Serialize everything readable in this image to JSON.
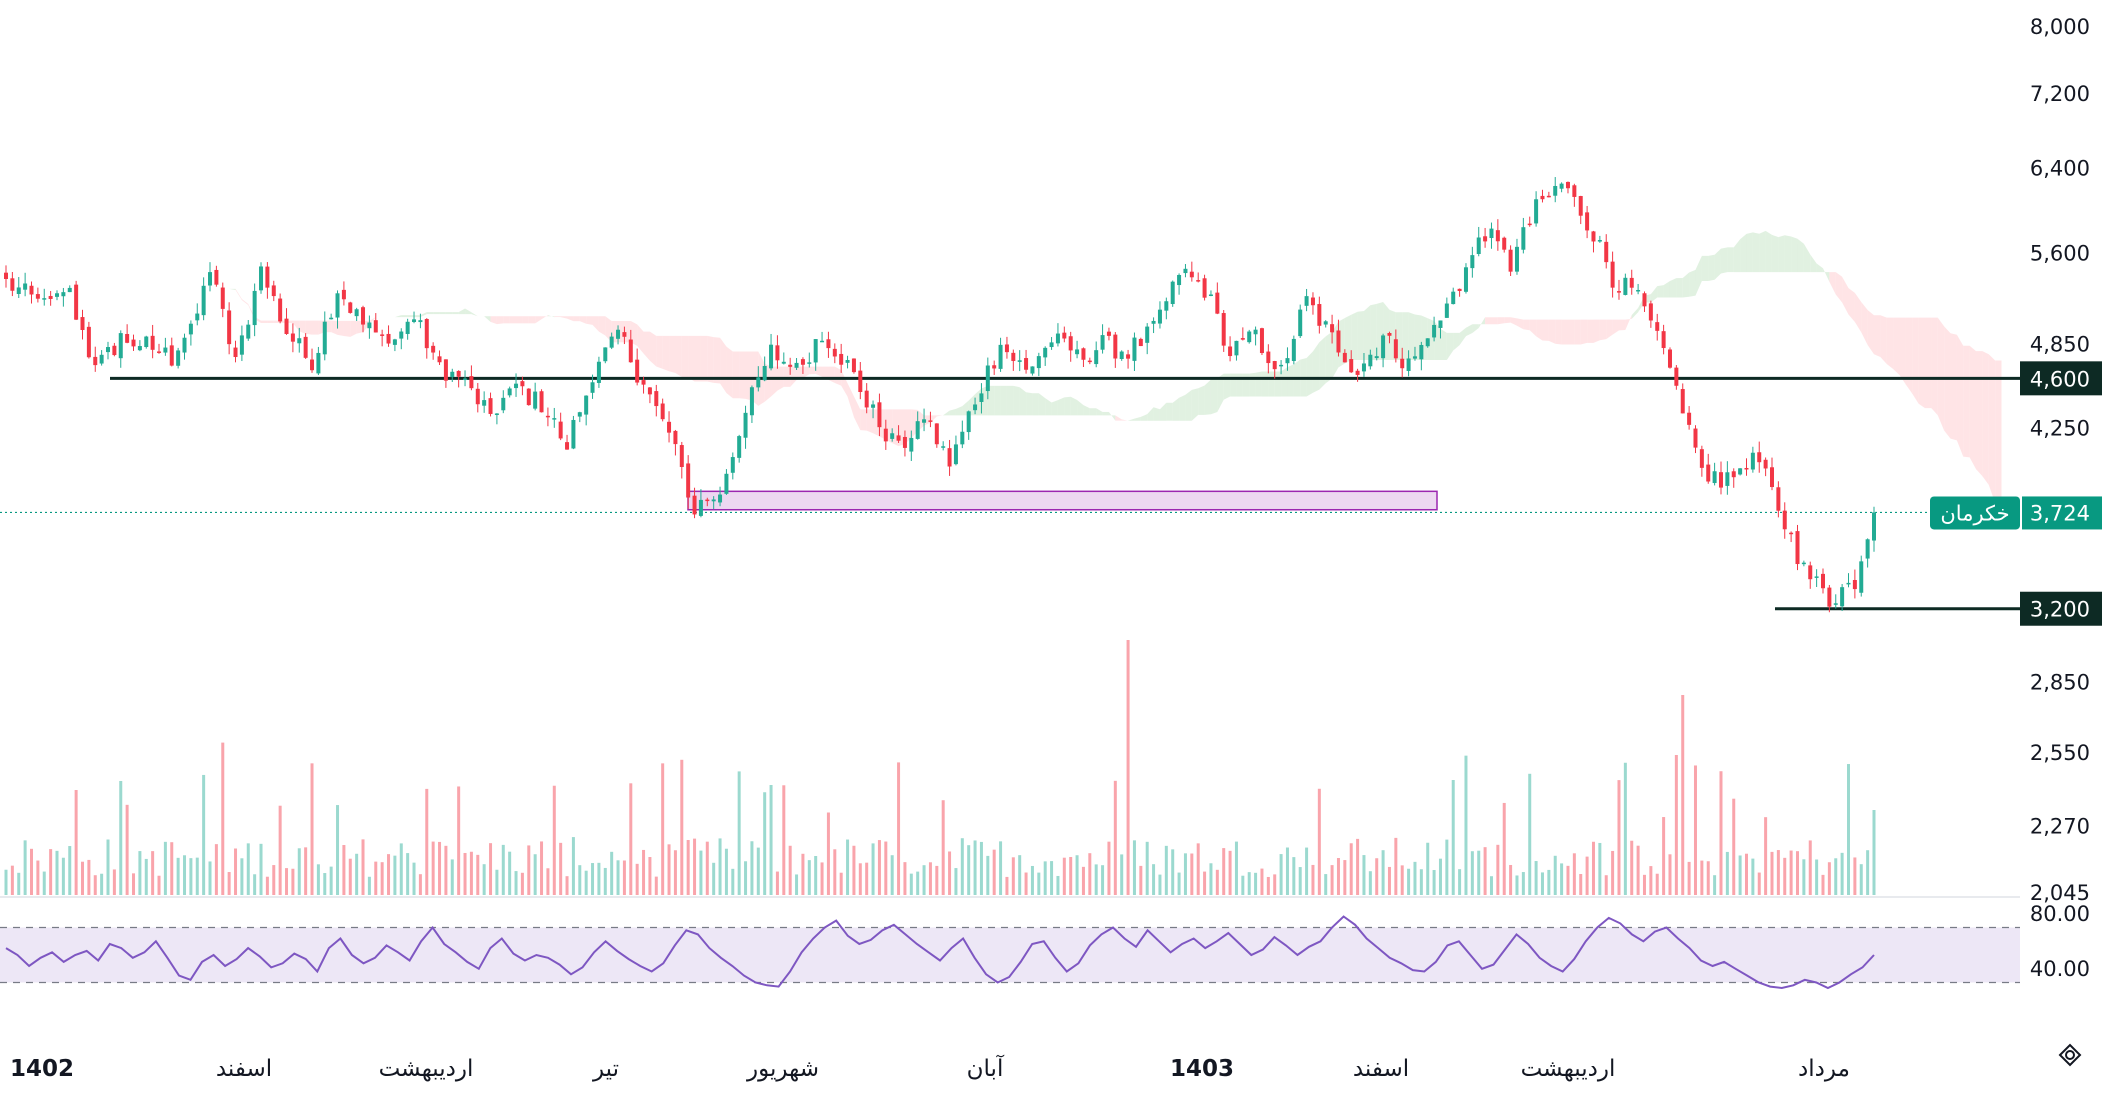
{
  "chart_data": {
    "type": "candlestick",
    "symbol": "خکرمان",
    "last_price": "3,724",
    "colors": {
      "up": "#22ab94",
      "down": "#f23645",
      "rsi_line": "#7e57c2",
      "rsi_band": "#ede7f6",
      "zone_fill": "#e1bee7",
      "zone_stroke": "#9c27b0",
      "level_line": "#0d2a24",
      "symbol_tag": "#089981",
      "cloud_green": "#c8e6c9",
      "cloud_red": "#ffcdd2"
    },
    "price_axis": {
      "ticks": [
        "8,000",
        "7,200",
        "6,400",
        "5,600",
        "4,850",
        "4,250",
        "3,200",
        "2,850",
        "2,550",
        "2,270",
        "2,045"
      ],
      "tick_values": [
        8000,
        7200,
        6400,
        5600,
        4850,
        4250,
        3200,
        2850,
        2550,
        2270,
        2045
      ],
      "scale": "log",
      "range": [
        1900,
        8300
      ]
    },
    "levels": [
      {
        "value": 4600,
        "label": "4,600"
      },
      {
        "value": 3200,
        "label": "3,200"
      }
    ],
    "zone": {
      "low": 3740,
      "high": 3850
    },
    "rsi": {
      "ticks": [
        "80.00",
        "40.00"
      ],
      "tick_values": [
        80,
        40
      ],
      "band": [
        30,
        70
      ],
      "series": [
        55,
        50,
        42,
        48,
        52,
        45,
        50,
        53,
        46,
        58,
        55,
        48,
        52,
        60,
        48,
        35,
        32,
        45,
        50,
        42,
        47,
        55,
        49,
        41,
        44,
        51,
        47,
        38,
        55,
        62,
        50,
        44,
        48,
        57,
        52,
        46,
        60,
        70,
        58,
        52,
        45,
        40,
        55,
        62,
        51,
        46,
        50,
        48,
        43,
        36,
        41,
        52,
        60,
        53,
        47,
        42,
        38,
        44,
        57,
        68,
        65,
        55,
        48,
        42,
        35,
        30,
        28,
        27,
        38,
        52,
        62,
        70,
        75,
        64,
        58,
        61,
        68,
        72,
        65,
        58,
        52,
        46,
        55,
        62,
        48,
        36,
        30,
        34,
        45,
        58,
        60,
        48,
        38,
        44,
        57,
        65,
        70,
        62,
        56,
        68,
        60,
        52,
        58,
        62,
        55,
        60,
        66,
        58,
        50,
        54,
        63,
        57,
        50,
        56,
        60,
        70,
        78,
        72,
        62,
        55,
        48,
        44,
        39,
        38,
        45,
        57,
        60,
        50,
        40,
        43,
        54,
        65,
        58,
        48,
        42,
        38,
        47,
        60,
        70,
        77,
        73,
        65,
        60,
        67,
        70,
        62,
        55,
        46,
        42,
        45,
        40,
        35,
        30,
        27,
        26,
        28,
        32,
        30,
        26,
        30,
        36,
        41,
        50
      ],
      "start_value": "40.00"
    },
    "time_axis": [
      {
        "label": "1402",
        "bold": true
      },
      {
        "label": "اسفند",
        "bold": false
      },
      {
        "label": "اردیبهشت",
        "bold": false
      },
      {
        "label": "تیر",
        "bold": false
      },
      {
        "label": "شهریور",
        "bold": false
      },
      {
        "label": "آبان",
        "bold": false
      },
      {
        "label": "1403",
        "bold": true
      },
      {
        "label": "اسفند",
        "bold": false
      },
      {
        "label": "اردیبهشت",
        "bold": false
      },
      {
        "label": "مرداد",
        "bold": false
      }
    ],
    "anchors": [
      [
        0,
        5350
      ],
      [
        6,
        5150
      ],
      [
        10,
        5250
      ],
      [
        14,
        4650
      ],
      [
        18,
        4900
      ],
      [
        22,
        4850
      ],
      [
        26,
        4750
      ],
      [
        30,
        5100
      ],
      [
        32,
        5450
      ],
      [
        36,
        4700
      ],
      [
        40,
        5450
      ],
      [
        44,
        4950
      ],
      [
        48,
        4700
      ],
      [
        52,
        5300
      ],
      [
        56,
        5000
      ],
      [
        60,
        4850
      ],
      [
        64,
        5050
      ],
      [
        68,
        4700
      ],
      [
        72,
        4550
      ],
      [
        76,
        4350
      ],
      [
        80,
        4550
      ],
      [
        84,
        4400
      ],
      [
        88,
        4150
      ],
      [
        92,
        4600
      ],
      [
        96,
        4950
      ],
      [
        100,
        4550
      ],
      [
        104,
        4200
      ],
      [
        108,
        3750
      ],
      [
        112,
        3850
      ],
      [
        116,
        4350
      ],
      [
        120,
        4800
      ],
      [
        124,
        4650
      ],
      [
        128,
        4950
      ],
      [
        132,
        4700
      ],
      [
        136,
        4350
      ],
      [
        140,
        4100
      ],
      [
        144,
        4350
      ],
      [
        148,
        4000
      ],
      [
        152,
        4450
      ],
      [
        156,
        4850
      ],
      [
        160,
        4650
      ],
      [
        164,
        4900
      ],
      [
        168,
        4750
      ],
      [
        172,
        4850
      ],
      [
        176,
        4800
      ],
      [
        180,
        4950
      ],
      [
        184,
        5450
      ],
      [
        188,
        5300
      ],
      [
        192,
        4800
      ],
      [
        196,
        4900
      ],
      [
        200,
        4650
      ],
      [
        204,
        5200
      ],
      [
        208,
        4900
      ],
      [
        212,
        4650
      ],
      [
        216,
        4900
      ],
      [
        220,
        4700
      ],
      [
        224,
        4950
      ],
      [
        228,
        5350
      ],
      [
        232,
        5800
      ],
      [
        236,
        5500
      ],
      [
        240,
        6000
      ],
      [
        244,
        6250
      ],
      [
        248,
        5900
      ],
      [
        252,
        5400
      ],
      [
        256,
        5200
      ],
      [
        260,
        4800
      ],
      [
        262,
        4500
      ],
      [
        266,
        4000
      ],
      [
        270,
        3900
      ],
      [
        274,
        4100
      ],
      [
        278,
        3750
      ],
      [
        282,
        3400
      ],
      [
        286,
        3250
      ],
      [
        290,
        3350
      ],
      [
        293,
        3725
      ]
    ]
  }
}
